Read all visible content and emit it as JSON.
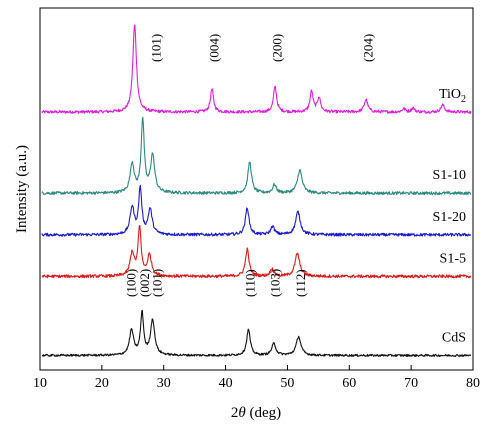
{
  "chart_data": {
    "type": "line",
    "xlabel_prefix": "2",
    "xlabel_theta": "θ",
    "xlabel_suffix": " (deg)",
    "ylabel": "Intensity (a.u.)",
    "xlim": [
      10,
      80
    ],
    "x_ticks": [
      10,
      20,
      30,
      40,
      50,
      60,
      70,
      80
    ],
    "series": [
      {
        "name": "TiO",
        "name_sub": "2",
        "color": "#e01ee0",
        "baseline": 6.2,
        "noise": 0.035,
        "peaks": [
          {
            "x": 25.3,
            "h": 2.1,
            "w": 0.35
          },
          {
            "x": 37.8,
            "h": 0.55,
            "w": 0.3
          },
          {
            "x": 48.0,
            "h": 0.62,
            "w": 0.3
          },
          {
            "x": 53.9,
            "h": 0.5,
            "w": 0.3
          },
          {
            "x": 55.1,
            "h": 0.35,
            "w": 0.3
          },
          {
            "x": 62.7,
            "h": 0.3,
            "w": 0.35
          },
          {
            "x": 68.8,
            "h": 0.08,
            "w": 0.3
          },
          {
            "x": 70.3,
            "h": 0.1,
            "w": 0.3
          },
          {
            "x": 75.1,
            "h": 0.17,
            "w": 0.35
          }
        ]
      },
      {
        "name": "S1-10",
        "color": "#2a8a80",
        "baseline": 4.25,
        "noise": 0.035,
        "peaks": [
          {
            "x": 24.9,
            "h": 0.7,
            "w": 0.4
          },
          {
            "x": 26.6,
            "h": 1.75,
            "w": 0.3
          },
          {
            "x": 28.2,
            "h": 0.9,
            "w": 0.4
          },
          {
            "x": 43.9,
            "h": 0.75,
            "w": 0.35
          },
          {
            "x": 47.9,
            "h": 0.2,
            "w": 0.35
          },
          {
            "x": 52.0,
            "h": 0.55,
            "w": 0.45
          }
        ]
      },
      {
        "name": "S1-20",
        "color": "#1a1ad6",
        "baseline": 3.25,
        "noise": 0.035,
        "peaks": [
          {
            "x": 24.9,
            "h": 0.65,
            "w": 0.4
          },
          {
            "x": 26.2,
            "h": 1.1,
            "w": 0.3
          },
          {
            "x": 27.8,
            "h": 0.6,
            "w": 0.4
          },
          {
            "x": 43.5,
            "h": 0.65,
            "w": 0.35
          },
          {
            "x": 47.6,
            "h": 0.2,
            "w": 0.35
          },
          {
            "x": 51.7,
            "h": 0.55,
            "w": 0.45
          }
        ]
      },
      {
        "name": "S1-5",
        "color": "#e01818",
        "baseline": 2.25,
        "noise": 0.035,
        "peaks": [
          {
            "x": 24.9,
            "h": 0.55,
            "w": 0.4
          },
          {
            "x": 26.1,
            "h": 1.15,
            "w": 0.3
          },
          {
            "x": 27.7,
            "h": 0.5,
            "w": 0.4
          },
          {
            "x": 43.5,
            "h": 0.65,
            "w": 0.35
          },
          {
            "x": 47.5,
            "h": 0.18,
            "w": 0.35
          },
          {
            "x": 51.6,
            "h": 0.55,
            "w": 0.45
          }
        ]
      },
      {
        "name": "CdS",
        "color": "#111111",
        "baseline": 0.35,
        "noise": 0.025,
        "peaks": [
          {
            "x": 24.8,
            "h": 0.6,
            "w": 0.4
          },
          {
            "x": 26.5,
            "h": 1.0,
            "w": 0.3
          },
          {
            "x": 28.2,
            "h": 0.85,
            "w": 0.4
          },
          {
            "x": 43.7,
            "h": 0.62,
            "w": 0.35
          },
          {
            "x": 47.8,
            "h": 0.28,
            "w": 0.4
          },
          {
            "x": 51.8,
            "h": 0.45,
            "w": 0.45
          }
        ]
      }
    ],
    "peak_labels_top": [
      {
        "text": "(101)",
        "x": 28.8
      },
      {
        "text": "(004)",
        "x": 38.2
      },
      {
        "text": "(200)",
        "x": 48.4
      },
      {
        "text": "(204)",
        "x": 63.1
      }
    ],
    "peak_labels_bottom": [
      {
        "text": "(100)",
        "x": 24.8
      },
      {
        "text": "(002)",
        "x": 27.0
      },
      {
        "text": "(101)",
        "x": 29.0
      },
      {
        "text": "(110)",
        "x": 44.0
      },
      {
        "text": "(103)",
        "x": 48.1
      },
      {
        "text": "(112)",
        "x": 52.2
      }
    ]
  }
}
